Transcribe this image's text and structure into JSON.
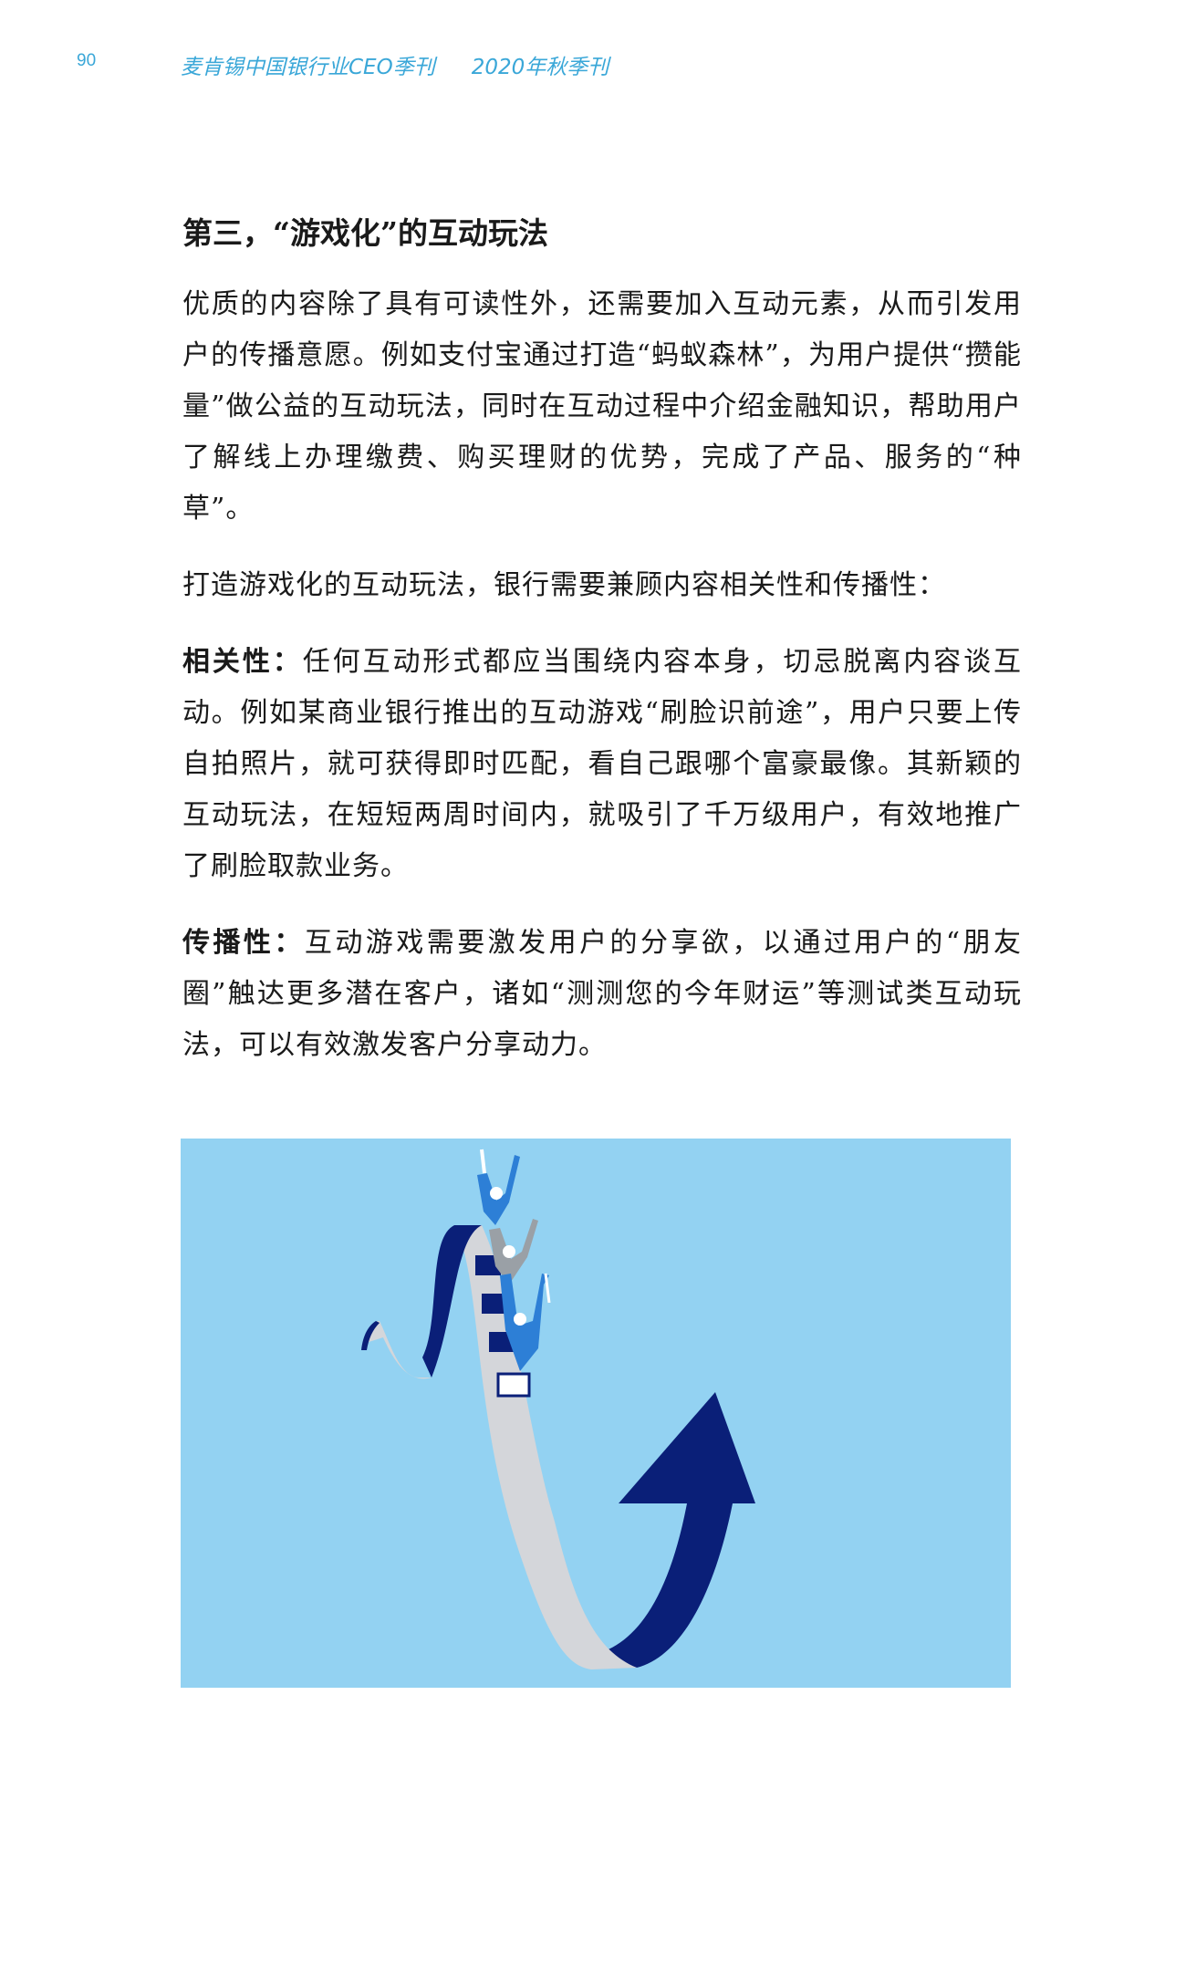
{
  "header": {
    "page_number": "90",
    "publication": "麦肯锡中国银行业CEO季刊",
    "issue": "2020年秋季刊"
  },
  "section": {
    "title": "第三，“游戏化”的互动玩法",
    "paragraphs": {
      "p1": "优质的内容除了具有可读性外，还需要加入互动元素，从而引发用户的传播意愿。例如支付宝通过打造“蚂蚁森林”，为用户提供“攒能量”做公益的互动玩法，同时在互动过程中介绍金融知识，帮助用户了解线上办理缴费、购买理财的优势，完成了产品、服务的“种草”。",
      "p2": "打造游戏化的互动玩法，银行需要兼顾内容相关性和传播性：",
      "p3_label": "相关性：",
      "p3_text": "任何互动形式都应当围绕内容本身，切忌脱离内容谈互动。例如某商业银行推出的互动游戏“刷脸识前途”，用户只要上传自拍照片，就可获得即时匹配，看自己跟哪个富豪最像。其新颖的互动玩法，在短短两周时间内，就吸引了千万级用户，有效地推广了刷脸取款业务。",
      "p4_label": "传播性：",
      "p4_text": "互动游戏需要激发用户的分享欲，以通过用户的“朋友圈”触达更多潜在客户，诸如“测测您的今年财运”等测试类互动玩法，可以有效激发客户分享动力。"
    }
  },
  "figure": {
    "colors": {
      "background": "#93d2f2",
      "arrow_dark": "#0a1f78",
      "ribbon_light": "#d4d6da",
      "rider_blue": "#2d7fd6",
      "rider_gray": "#9aa0a6"
    }
  }
}
